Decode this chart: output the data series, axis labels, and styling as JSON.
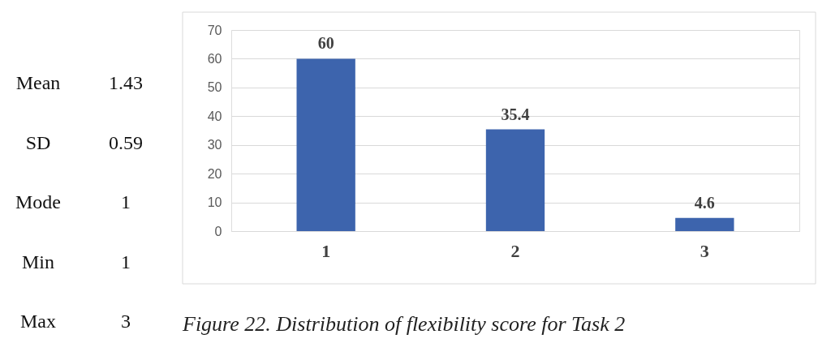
{
  "chart_data": {
    "type": "bar",
    "categories": [
      "1",
      "2",
      "3"
    ],
    "values": [
      60,
      35.4,
      4.6
    ],
    "color": "#3d64ad",
    "ylim": [
      0,
      70
    ],
    "yticks": [
      0,
      10,
      20,
      30,
      40,
      50,
      60,
      70
    ],
    "grid": "y",
    "data_labels": true,
    "annotations": [
      "Mean",
      "1.43",
      "SD",
      "0.59",
      "Mode",
      "1",
      "Min",
      "1",
      "Max",
      "3",
      "Figure 22. Distribution of flexibility score for Task 2"
    ]
  }
}
